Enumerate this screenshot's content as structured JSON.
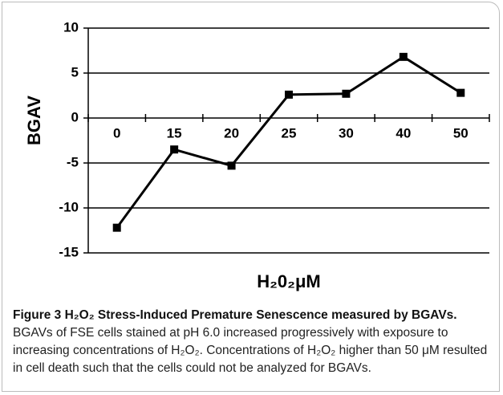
{
  "chart_data": {
    "type": "line",
    "categories": [
      "0",
      "15",
      "20",
      "25",
      "30",
      "40",
      "50"
    ],
    "values": [
      -12.2,
      -3.5,
      -5.3,
      2.6,
      2.7,
      6.8,
      2.8
    ],
    "color": "#000000",
    "ylabel": "BGAV",
    "xlabel": "H₂0₂μM",
    "ylim": [
      -15,
      10
    ],
    "yticks": [
      -15,
      -10,
      -5,
      0,
      5,
      10
    ],
    "grid": true
  },
  "caption": {
    "title": "Figure 3 H₂O₂ Stress-Induced Premature Senescence measured by BGAVs.",
    "text": "BGAVs of FSE cells stained at pH 6.0 increased progressively with exposure to increasing concentrations of H₂O₂. Concentrations of H₂O₂ higher than 50 μM resulted in cell death such that the cells could not be analyzed for BGAVs."
  }
}
